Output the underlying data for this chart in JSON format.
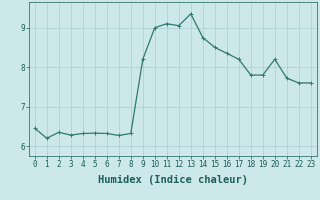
{
  "x": [
    0,
    1,
    2,
    3,
    4,
    5,
    6,
    7,
    8,
    9,
    10,
    11,
    12,
    13,
    14,
    15,
    16,
    17,
    18,
    19,
    20,
    21,
    22,
    23
  ],
  "y": [
    6.45,
    6.2,
    6.35,
    6.28,
    6.32,
    6.33,
    6.32,
    6.27,
    6.32,
    8.2,
    9.0,
    9.1,
    9.05,
    9.35,
    8.75,
    8.5,
    8.35,
    8.2,
    7.8,
    7.8,
    8.2,
    7.72,
    7.6,
    7.6
  ],
  "line_color": "#2d7a6e",
  "marker": "+",
  "marker_size": 3,
  "marker_linewidth": 0.7,
  "bg_color": "#cce8e8",
  "grid_color": "#aacece",
  "xlabel": "Humidex (Indice chaleur)",
  "xlim": [
    -0.5,
    23.5
  ],
  "ylim": [
    5.75,
    9.65
  ],
  "yticks": [
    6,
    7,
    8,
    9
  ],
  "xticks": [
    0,
    1,
    2,
    3,
    4,
    5,
    6,
    7,
    8,
    9,
    10,
    11,
    12,
    13,
    14,
    15,
    16,
    17,
    18,
    19,
    20,
    21,
    22,
    23
  ],
  "tick_fontsize": 5.5,
  "xlabel_fontsize": 7.5,
  "tick_color": "#1a5f58",
  "line_width": 0.9
}
